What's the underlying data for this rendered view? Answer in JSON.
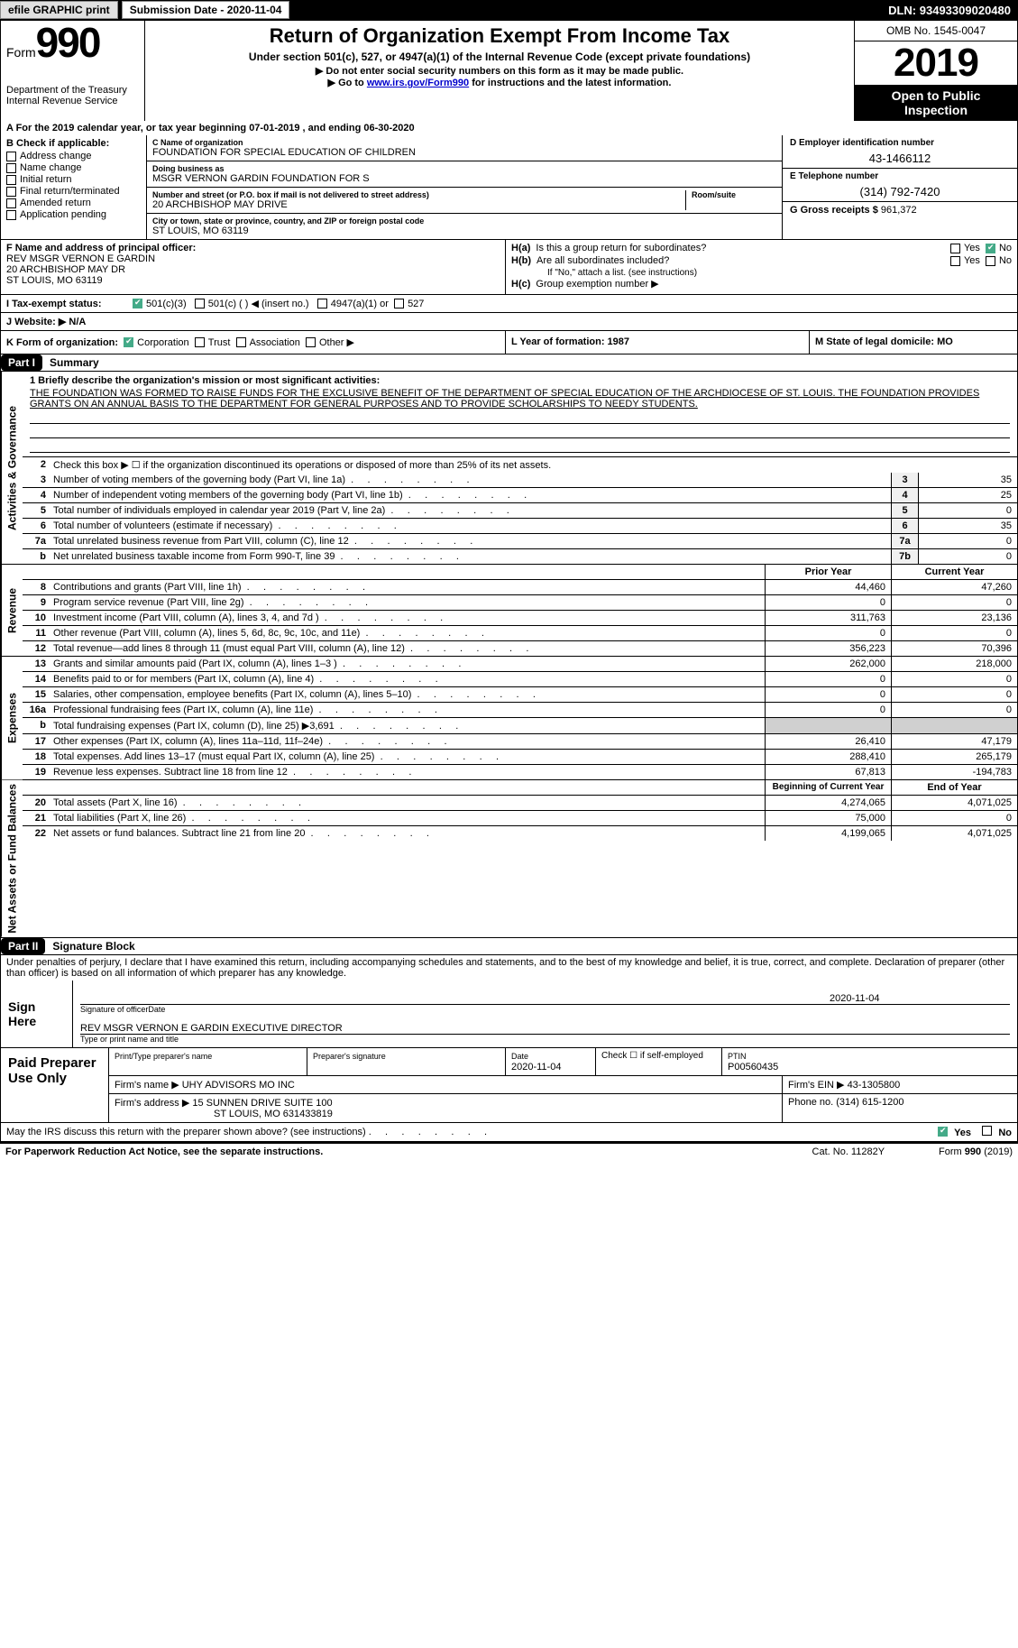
{
  "top": {
    "efile": "efile GRAPHIC print",
    "sub_date_lbl": "Submission Date - ",
    "sub_date": "2020-11-04",
    "dln_lbl": "DLN: ",
    "dln": "93493309020480"
  },
  "header": {
    "form_word": "Form",
    "form_num": "990",
    "dept1": "Department of the Treasury",
    "dept2": "Internal Revenue Service",
    "title": "Return of Organization Exempt From Income Tax",
    "sub1": "Under section 501(c), 527, or 4947(a)(1) of the Internal Revenue Code (except private foundations)",
    "sub2": "▶ Do not enter social security numbers on this form as it may be made public.",
    "sub3a": "▶ Go to ",
    "sub3_link": "www.irs.gov/Form990",
    "sub3b": " for instructions and the latest information.",
    "omb": "OMB No. 1545-0047",
    "year": "2019",
    "open1": "Open to Public",
    "open2": "Inspection"
  },
  "lineA": "A For the 2019 calendar year, or tax year beginning 07-01-2019     , and ending 06-30-2020",
  "colB": {
    "hdr": "B Check if applicable:",
    "c1": "Address change",
    "c2": "Name change",
    "c3": "Initial return",
    "c4": "Final return/terminated",
    "c5": "Amended return",
    "c6": "Application pending"
  },
  "colC": {
    "name_lbl": "C Name of organization",
    "name": "FOUNDATION FOR SPECIAL EDUCATION OF CHILDREN",
    "dba_lbl": "Doing business as",
    "dba": "MSGR VERNON GARDIN FOUNDATION FOR S",
    "addr_lbl": "Number and street (or P.O. box if mail is not delivered to street address)",
    "room_lbl": "Room/suite",
    "addr": "20 ARCHBISHOP MAY DRIVE",
    "city_lbl": "City or town, state or province, country, and ZIP or foreign postal code",
    "city": "ST LOUIS, MO  63119"
  },
  "colD": {
    "ein_lbl": "D Employer identification number",
    "ein": "43-1466112",
    "tel_lbl": "E Telephone number",
    "tel": "(314) 792-7420",
    "gross_lbl": "G Gross receipts $ ",
    "gross": "961,372"
  },
  "colF": {
    "lbl": "F Name and address of principal officer:",
    "l1": "REV MSGR VERNON E GARDIN",
    "l2": "20 ARCHBISHOP MAY DR",
    "l3": "ST LOUIS, MO  63119"
  },
  "colH": {
    "a_lbl": "H(a)",
    "a_txt": "Is this a group return for subordinates?",
    "b_lbl": "H(b)",
    "b_txt": "Are all subordinates included?",
    "note": "If \"No,\" attach a list. (see instructions)",
    "c_lbl": "H(c)",
    "c_txt": "Group exemption number ▶"
  },
  "rowI": {
    "lbl": "I  Tax-exempt status:",
    "o1": "501(c)(3)",
    "o2": "501(c) (  ) ◀ (insert no.)",
    "o3": "4947(a)(1) or",
    "o4": "527"
  },
  "rowJ": "J  Website: ▶  N/A",
  "rowK": "K Form of organization:",
  "k_opts": {
    "o1": "Corporation",
    "o2": "Trust",
    "o3": "Association",
    "o4": "Other ▶"
  },
  "rowL": "L Year of formation: 1987",
  "rowM": "M State of legal domicile: MO",
  "part1": {
    "hdr": "Part I",
    "title": "Summary",
    "side1": "Activities & Governance",
    "side2": "Revenue",
    "side3": "Expenses",
    "side4": "Net Assets or Fund Balances",
    "l1_lbl": "1  Briefly describe the organization's mission or most significant activities:",
    "l1_txt": "THE FOUNDATION WAS FORMED TO RAISE FUNDS FOR THE EXCLUSIVE BENEFIT OF THE DEPARTMENT OF SPECIAL EDUCATION OF THE ARCHDIOCESE OF ST. LOUIS. THE FOUNDATION PROVIDES GRANTS ON AN ANNUAL BASIS TO THE DEPARTMENT FOR GENERAL PURPOSES AND TO PROVIDE SCHOLARSHIPS TO NEEDY STUDENTS.",
    "l2": "Check this box ▶ ☐  if the organization discontinued its operations or disposed of more than 25% of its net assets.",
    "rows_gov": [
      {
        "n": "3",
        "t": "Number of voting members of the governing body (Part VI, line 1a)",
        "b": "3",
        "v": "35"
      },
      {
        "n": "4",
        "t": "Number of independent voting members of the governing body (Part VI, line 1b)",
        "b": "4",
        "v": "25"
      },
      {
        "n": "5",
        "t": "Total number of individuals employed in calendar year 2019 (Part V, line 2a)",
        "b": "5",
        "v": "0"
      },
      {
        "n": "6",
        "t": "Total number of volunteers (estimate if necessary)",
        "b": "6",
        "v": "35"
      },
      {
        "n": "7a",
        "t": "Total unrelated business revenue from Part VIII, column (C), line 12",
        "b": "7a",
        "v": "0"
      },
      {
        "n": "b",
        "t": "Net unrelated business taxable income from Form 990-T, line 39",
        "b": "7b",
        "v": "0"
      }
    ],
    "col_prior": "Prior Year",
    "col_curr": "Current Year",
    "rows_rev": [
      {
        "n": "8",
        "t": "Contributions and grants (Part VIII, line 1h)",
        "p": "44,460",
        "c": "47,260"
      },
      {
        "n": "9",
        "t": "Program service revenue (Part VIII, line 2g)",
        "p": "0",
        "c": "0"
      },
      {
        "n": "10",
        "t": "Investment income (Part VIII, column (A), lines 3, 4, and 7d )",
        "p": "311,763",
        "c": "23,136"
      },
      {
        "n": "11",
        "t": "Other revenue (Part VIII, column (A), lines 5, 6d, 8c, 9c, 10c, and 11e)",
        "p": "0",
        "c": "0"
      },
      {
        "n": "12",
        "t": "Total revenue—add lines 8 through 11 (must equal Part VIII, column (A), line 12)",
        "p": "356,223",
        "c": "70,396"
      }
    ],
    "rows_exp": [
      {
        "n": "13",
        "t": "Grants and similar amounts paid (Part IX, column (A), lines 1–3 )",
        "p": "262,000",
        "c": "218,000"
      },
      {
        "n": "14",
        "t": "Benefits paid to or for members (Part IX, column (A), line 4)",
        "p": "0",
        "c": "0"
      },
      {
        "n": "15",
        "t": "Salaries, other compensation, employee benefits (Part IX, column (A), lines 5–10)",
        "p": "0",
        "c": "0"
      },
      {
        "n": "16a",
        "t": "Professional fundraising fees (Part IX, column (A), line 11e)",
        "p": "0",
        "c": "0"
      },
      {
        "n": "b",
        "t": "Total fundraising expenses (Part IX, column (D), line 25) ▶3,691",
        "p": "",
        "c": "",
        "grey": true
      },
      {
        "n": "17",
        "t": "Other expenses (Part IX, column (A), lines 11a–11d, 11f–24e)",
        "p": "26,410",
        "c": "47,179"
      },
      {
        "n": "18",
        "t": "Total expenses. Add lines 13–17 (must equal Part IX, column (A), line 25)",
        "p": "288,410",
        "c": "265,179"
      },
      {
        "n": "19",
        "t": "Revenue less expenses. Subtract line 18 from line 12",
        "p": "67,813",
        "c": "-194,783"
      }
    ],
    "col_begin": "Beginning of Current Year",
    "col_end": "End of Year",
    "rows_net": [
      {
        "n": "20",
        "t": "Total assets (Part X, line 16)",
        "p": "4,274,065",
        "c": "4,071,025"
      },
      {
        "n": "21",
        "t": "Total liabilities (Part X, line 26)",
        "p": "75,000",
        "c": "0"
      },
      {
        "n": "22",
        "t": "Net assets or fund balances. Subtract line 21 from line 20",
        "p": "4,199,065",
        "c": "4,071,025"
      }
    ]
  },
  "part2": {
    "hdr": "Part II",
    "title": "Signature Block",
    "perjury": "Under penalties of perjury, I declare that I have examined this return, including accompanying schedules and statements, and to the best of my knowledge and belief, it is true, correct, and complete. Declaration of preparer (other than officer) is based on all information of which preparer has any knowledge.",
    "sign_here": "Sign Here",
    "sig_date": "2020-11-04",
    "sig_lbl1": "Signature of officer",
    "sig_lbl2": "Date",
    "name_title": "REV MSGR VERNON E GARDIN  EXECUTIVE DIRECTOR",
    "name_lbl": "Type or print name and title",
    "paid": "Paid Preparer Use Only",
    "p_name_lbl": "Print/Type preparer's name",
    "p_sig_lbl": "Preparer's signature",
    "p_date_lbl": "Date",
    "p_date": "2020-11-04",
    "p_self": "Check ☐  if self-employed",
    "p_ptin_lbl": "PTIN",
    "p_ptin": "P00560435",
    "firm_name_lbl": "Firm's name    ▶ ",
    "firm_name": "UHY ADVISORS MO INC",
    "firm_ein_lbl": "Firm's EIN ▶ ",
    "firm_ein": "43-1305800",
    "firm_addr_lbl": "Firm's address ▶ ",
    "firm_addr1": "15 SUNNEN DRIVE SUITE 100",
    "firm_addr2": "ST LOUIS, MO  631433819",
    "firm_phone_lbl": "Phone no. ",
    "firm_phone": "(314) 615-1200",
    "discuss": "May the IRS discuss this return with the preparer shown above? (see instructions)",
    "yes": "Yes",
    "no": "No"
  },
  "footer": {
    "pra": "For Paperwork Reduction Act Notice, see the separate instructions.",
    "cat": "Cat. No. 11282Y",
    "form": "Form 990 (2019)"
  }
}
